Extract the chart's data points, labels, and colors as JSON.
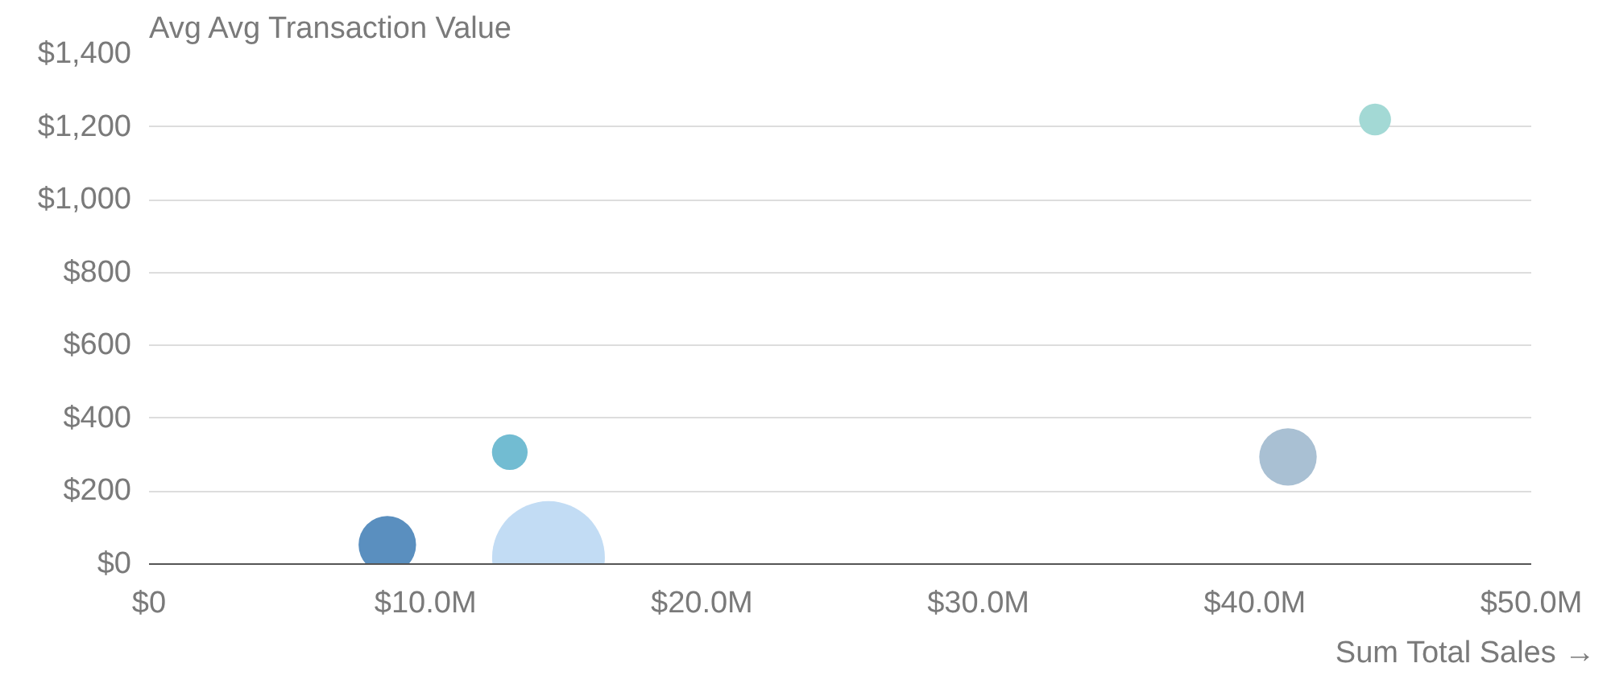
{
  "chart_data": {
    "type": "bubble",
    "ylabel": "Avg Avg Transaction Value",
    "xlabel": "Sum Total Sales →",
    "x": [
      44350000,
      13050000,
      8620000,
      14450000,
      41200000
    ],
    "values": [
      1220,
      307,
      53,
      18,
      294
    ],
    "sizes": [
      0.08,
      0.1,
      0.26,
      1,
      0.26
    ],
    "colors": [
      "#a3d9d5",
      "#72bcd2",
      "#5a8fbf",
      "#c2dcf4",
      "#a9c0d3"
    ],
    "xlim": [
      0,
      50000000
    ],
    "ylim": [
      0,
      1400
    ],
    "xticks": [
      {
        "value": 0,
        "label": "$0"
      },
      {
        "value": 10000000,
        "label": "$10.0M"
      },
      {
        "value": 20000000,
        "label": "$20.0M"
      },
      {
        "value": 30000000,
        "label": "$30.0M"
      },
      {
        "value": 40000000,
        "label": "$40.0M"
      },
      {
        "value": 50000000,
        "label": "$50.0M"
      }
    ],
    "yticks": [
      {
        "value": 0,
        "label": "$0"
      },
      {
        "value": 200,
        "label": "$200"
      },
      {
        "value": 400,
        "label": "$400"
      },
      {
        "value": 600,
        "label": "$600"
      },
      {
        "value": 800,
        "label": "$800"
      },
      {
        "value": 1000,
        "label": "$1,000"
      },
      {
        "value": 1200,
        "label": "$1,200"
      },
      {
        "value": 1400,
        "label": "$1,400"
      }
    ],
    "grid": "y"
  }
}
